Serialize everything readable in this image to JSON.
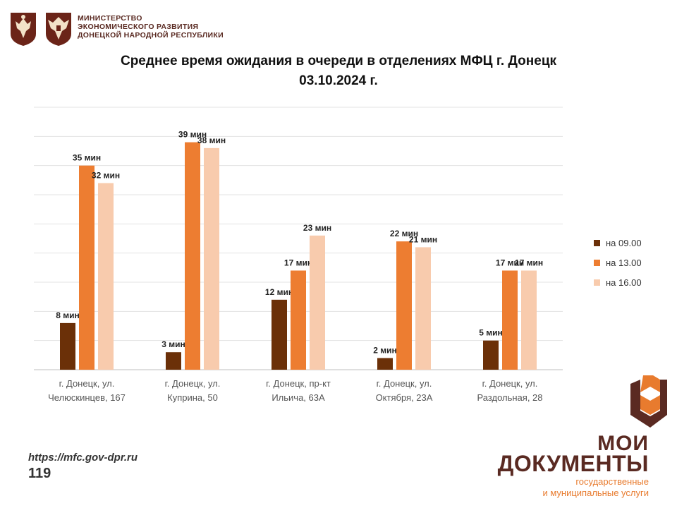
{
  "header": {
    "ministry_lines": [
      "МИНИСТЕРСТВО",
      "ЭКОНОМИЧЕСКОГО РАЗВИТИЯ",
      "ДОНЕЦКОЙ НАРОДНОЙ РЕСПУБЛИКИ"
    ],
    "emblem_1": "coat-of-arms-icon",
    "emblem_2": "ministry-eagle-icon"
  },
  "chart_data": {
    "type": "bar",
    "title": "Среднее время ожидания в очереди в отделениях МФЦ г. Донецк",
    "subtitle": "03.10.2024 г.",
    "categories": [
      [
        "г. Донецк, ул.",
        "Челюскинцев, 167"
      ],
      [
        "г. Донецк, ул.",
        "Куприна, 50"
      ],
      [
        "г. Донецк, пр-кт",
        "Ильича, 63А"
      ],
      [
        "г. Донецк, ул.",
        "Октября, 23А"
      ],
      [
        "г. Донецк, ул.",
        "Раздольная, 28"
      ]
    ],
    "series": [
      {
        "name": "на 09.00",
        "color": "#6b3008",
        "values": [
          8,
          3,
          12,
          2,
          5
        ],
        "labels": [
          "8 мин",
          "3 мин",
          "12 мин",
          "2 мин",
          "5 мин"
        ]
      },
      {
        "name": "на 13.00",
        "color": "#ed7d31",
        "values": [
          35,
          39,
          17,
          22,
          17
        ],
        "labels": [
          "35 мин",
          "39 мин",
          "17 мин",
          "22 мин",
          "17 мин"
        ]
      },
      {
        "name": "на 16.00",
        "color": "#f8cbad",
        "values": [
          32,
          38,
          23,
          21,
          17
        ],
        "labels": [
          "32 мин",
          "38 мин",
          "23 мин",
          "21 мин",
          "17 мин"
        ]
      }
    ],
    "ylim": [
      0,
      45
    ],
    "grid": true,
    "legend": "right",
    "xlabel": "",
    "ylabel": ""
  },
  "footer": {
    "url": "https://mfc.gov-dpr.ru",
    "page_number": "119"
  },
  "brand": {
    "name_line1": "МОИ",
    "name_line2": "ДОКУМЕНТЫ",
    "tagline_line1": "государственные",
    "tagline_line2": "и муниципальные услуги",
    "color_primary": "#5a2a22",
    "color_accent": "#e87b2e"
  }
}
